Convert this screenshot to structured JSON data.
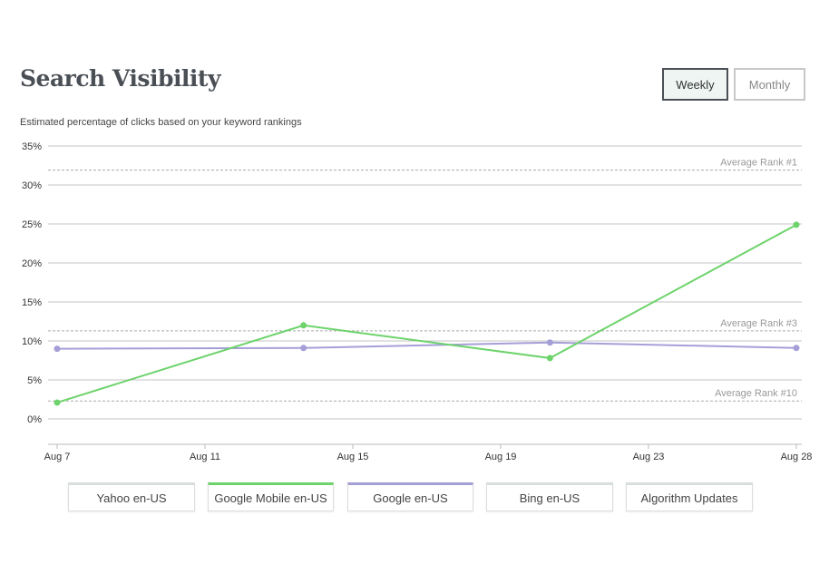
{
  "header": {
    "title": "Search Visibility",
    "subtitle": "Estimated percentage of clicks based on your keyword rankings"
  },
  "toggles": {
    "weekly": "Weekly",
    "monthly": "Monthly",
    "selected": "Weekly"
  },
  "legend": [
    {
      "label": "Yahoo en-US",
      "color": "#d8dedd",
      "active": false
    },
    {
      "label": "Google Mobile en-US",
      "color": "#6dd36b",
      "active": true
    },
    {
      "label": "Google en-US",
      "color": "#a59fd8",
      "active": true
    },
    {
      "label": "Bing en-US",
      "color": "#d8dedd",
      "active": false
    },
    {
      "label": "Algorithm Updates",
      "color": "#d8dedd",
      "active": false
    }
  ],
  "chart_data": {
    "type": "line",
    "x_ticks": [
      "Aug 7",
      "Aug 11",
      "Aug 15",
      "Aug 19",
      "Aug 23",
      "Aug 28"
    ],
    "x": [
      "Aug 7",
      "Aug 14",
      "Aug 21",
      "Aug 28"
    ],
    "y_ticks": [
      "0%",
      "5%",
      "10%",
      "15%",
      "20%",
      "25%",
      "30%",
      "35%"
    ],
    "ylim": [
      -3.3,
      35
    ],
    "grid": true,
    "series": [
      {
        "name": "Google Mobile en-US",
        "color": "#6dd36b",
        "values": [
          2.1,
          12.0,
          7.8,
          24.9
        ]
      },
      {
        "name": "Google en-US",
        "color": "#a59fd8",
        "values": [
          9.0,
          9.1,
          9.8,
          9.1
        ]
      }
    ],
    "reference_lines": [
      {
        "label": "Average Rank #1",
        "value": 31.9
      },
      {
        "label": "Average Rank #3",
        "value": 11.3
      },
      {
        "label": "Average Rank #10",
        "value": 2.3
      }
    ]
  }
}
